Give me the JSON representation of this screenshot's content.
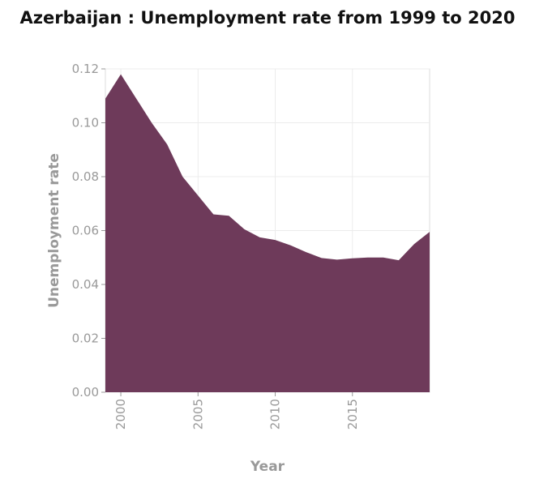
{
  "chart_data": {
    "type": "area",
    "title": "Azerbaijan : Unemployment rate from 1999 to 2020",
    "xlabel": "Year",
    "ylabel": "Unemployment rate",
    "x": [
      1999,
      2000,
      2001,
      2002,
      2003,
      2004,
      2005,
      2006,
      2007,
      2008,
      2009,
      2010,
      2011,
      2012,
      2013,
      2014,
      2015,
      2016,
      2017,
      2018,
      2019,
      2020
    ],
    "values": [
      0.109,
      0.118,
      0.109,
      0.1,
      0.092,
      0.08,
      0.073,
      0.066,
      0.0655,
      0.0605,
      0.0575,
      0.0565,
      0.0545,
      0.052,
      0.0498,
      0.0492,
      0.0497,
      0.05,
      0.05,
      0.049,
      0.055,
      0.0595
    ],
    "xlim": [
      1999,
      2020
    ],
    "ylim": [
      0,
      0.12
    ],
    "xticks": [
      "2000",
      "2005",
      "2010",
      "2015"
    ],
    "yticks": [
      "0.00",
      "0.02",
      "0.04",
      "0.06",
      "0.08",
      "0.10",
      "0.12"
    ],
    "grid": true,
    "fill_color": "#6e3a5a"
  }
}
